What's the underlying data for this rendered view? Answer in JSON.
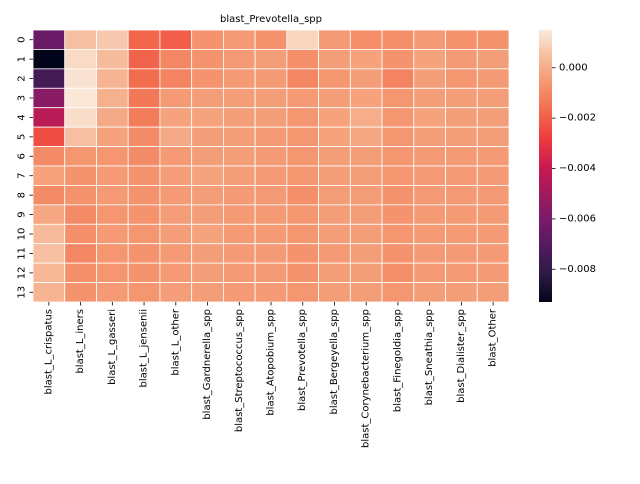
{
  "chart_data": {
    "type": "heatmap",
    "title": "blast_Prevotella_spp",
    "xlabel": "",
    "ylabel": "",
    "x_categories": [
      "blast_L_crispatus",
      "blast_L_iners",
      "blast_L_gasseri",
      "blast_L_jensenii",
      "blast_L_other",
      "blast_Gardnerella_spp",
      "blast_Streptococcus_spp",
      "blast_Atopobium_spp",
      "blast_Prevotella_spp",
      "blast_Bergeyella_spp",
      "blast_Corynebacterium_spp",
      "blast_Finegoldia_spp",
      "blast_Sneathia_spp",
      "blast_Dialister_spp",
      "blast_Other"
    ],
    "y_categories": [
      "0",
      "1",
      "2",
      "3",
      "4",
      "5",
      "6",
      "7",
      "8",
      "9",
      "10",
      "11",
      "12",
      "13"
    ],
    "values": [
      [
        -0.0065,
        0.0005,
        0.0007,
        -0.0018,
        -0.002,
        -0.0007,
        -0.0005,
        -0.0007,
        0.001,
        -0.0005,
        -0.0008,
        -0.0008,
        -0.0005,
        -0.0007,
        -0.0007
      ],
      [
        -0.0093,
        0.0011,
        0.0004,
        -0.0019,
        -0.001,
        -0.0007,
        -0.0005,
        -0.0004,
        -0.0008,
        -0.0004,
        -0.0003,
        -0.0007,
        -0.0003,
        -0.0005,
        -0.0004
      ],
      [
        -0.0075,
        0.0013,
        0.0002,
        -0.0017,
        -0.0011,
        -0.0007,
        -0.0005,
        -0.0005,
        -0.001,
        -0.0006,
        -0.0004,
        -0.0011,
        -0.0004,
        -0.0006,
        -0.0005
      ],
      [
        -0.0056,
        0.0014,
        0.0001,
        -0.0014,
        -0.0005,
        -0.0004,
        -0.0004,
        -0.0004,
        -0.0005,
        -0.0004,
        -0.0003,
        -0.0006,
        -0.0004,
        -0.0004,
        -0.0004
      ],
      [
        -0.0044,
        0.0012,
        -0.0001,
        -0.0013,
        -0.0003,
        -0.0003,
        -0.0004,
        -0.0004,
        -0.0006,
        -0.0003,
        0.0,
        -0.0006,
        -0.0003,
        -0.0004,
        -0.0004
      ],
      [
        -0.0024,
        0.0005,
        -0.0003,
        -0.0009,
        -0.0001,
        -0.0004,
        -0.0004,
        -0.0005,
        -0.0006,
        -0.0003,
        -0.0002,
        -0.0006,
        -0.0004,
        -0.0004,
        -0.0004
      ],
      [
        -0.0009,
        -0.0006,
        -0.0006,
        -0.0009,
        -0.0005,
        -0.0004,
        -0.0004,
        -0.0005,
        -0.0006,
        -0.0004,
        -0.0004,
        -0.0006,
        -0.0005,
        -0.0005,
        -0.0005
      ],
      [
        -0.0003,
        -0.0007,
        -0.0005,
        -0.0007,
        -0.0004,
        -0.0003,
        -0.0004,
        -0.0005,
        -0.0006,
        -0.0004,
        -0.0004,
        -0.0006,
        -0.0005,
        -0.0005,
        -0.0005
      ],
      [
        -0.0009,
        -0.0007,
        -0.0005,
        -0.0007,
        -0.0005,
        -0.0004,
        -0.0005,
        -0.0005,
        -0.0008,
        -0.0004,
        -0.0004,
        -0.0007,
        -0.0005,
        -0.0005,
        -0.0005
      ],
      [
        -0.0002,
        -0.0009,
        -0.0006,
        -0.0007,
        -0.0004,
        -0.0004,
        -0.0005,
        -0.0005,
        -0.0006,
        -0.0004,
        -0.0004,
        -0.0007,
        -0.0005,
        -0.0005,
        -0.0005
      ],
      [
        0.0004,
        -0.0008,
        -0.0005,
        -0.0006,
        -0.0004,
        -0.0003,
        -0.0005,
        -0.0005,
        -0.0006,
        -0.0004,
        -0.0004,
        -0.0006,
        -0.0005,
        -0.0005,
        -0.0005
      ],
      [
        0.0005,
        -0.001,
        -0.0006,
        -0.0007,
        -0.0005,
        -0.0004,
        -0.0005,
        -0.0005,
        -0.0007,
        -0.0005,
        -0.0004,
        -0.0007,
        -0.0005,
        -0.0005,
        -0.0005
      ],
      [
        0.0003,
        -0.0008,
        -0.0006,
        -0.0007,
        -0.0005,
        -0.0004,
        -0.0005,
        -0.0005,
        -0.0007,
        -0.0004,
        -0.0004,
        -0.0008,
        -0.0005,
        -0.0005,
        -0.0005
      ],
      [
        0.0002,
        -0.0007,
        -0.0005,
        -0.0006,
        -0.0004,
        -0.0004,
        -0.0005,
        -0.0005,
        -0.0006,
        -0.0004,
        -0.0004,
        -0.0006,
        -0.0004,
        -0.0004,
        -0.0004
      ]
    ],
    "value_range": [
      -0.0093,
      0.0015
    ],
    "colormap": "rocket",
    "colormap_stops": [
      "#03051a",
      "#2b1a44",
      "#501b5e",
      "#781a6b",
      "#a11a5b",
      "#cb1b4f",
      "#ec3c3f",
      "#f26a4d",
      "#f4956e",
      "#f6bc9c",
      "#faebdd"
    ],
    "colorbar": {
      "ticks": [
        0.0,
        -0.002,
        -0.004,
        -0.006,
        -0.008
      ],
      "tick_labels": [
        "0.000",
        "−0.002",
        "−0.004",
        "−0.006",
        "−0.008"
      ],
      "placement": "right"
    },
    "grid": true,
    "grid_color": "#ffffff"
  }
}
